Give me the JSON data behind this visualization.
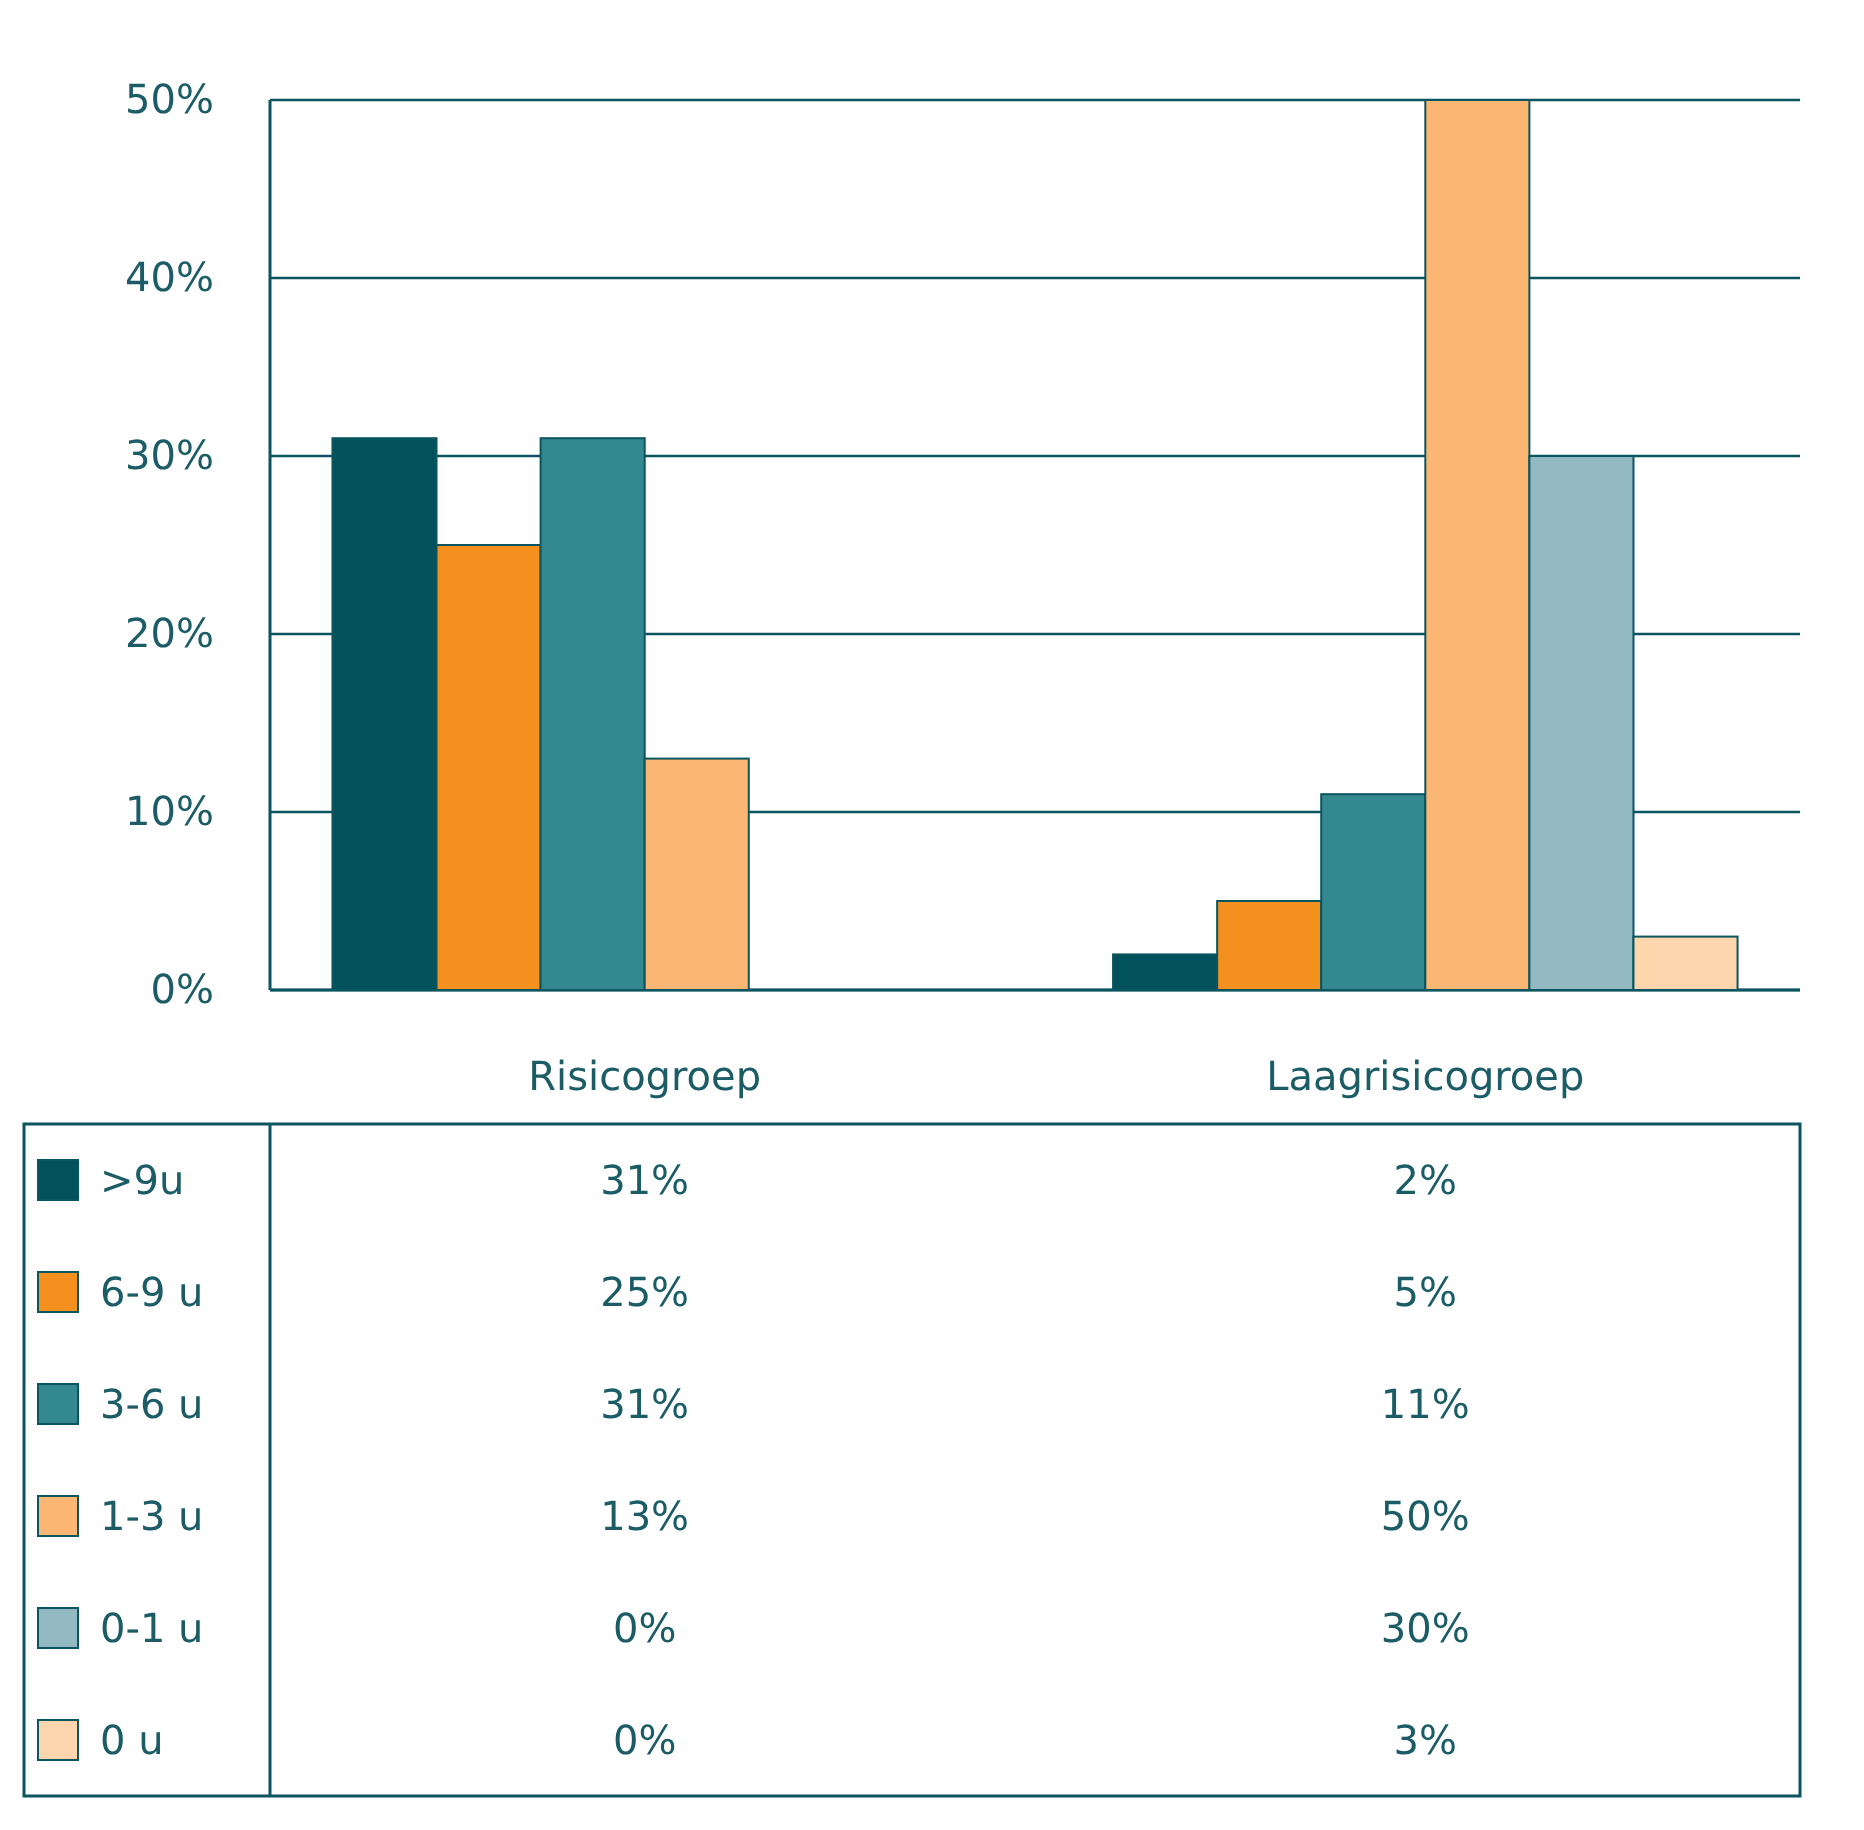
{
  "chart_data": {
    "type": "bar",
    "categories": [
      "Risicogroep",
      "Laagrisicogroep"
    ],
    "series": [
      {
        "name": ">9u",
        "color": "#02525c",
        "values": [
          31,
          2
        ],
        "value_labels": [
          "31%",
          "2%"
        ]
      },
      {
        "name": "6-9 u",
        "color": "#f4901e",
        "values": [
          25,
          5
        ],
        "value_labels": [
          "25%",
          "5%"
        ]
      },
      {
        "name": "3-6 u",
        "color": "#348890",
        "values": [
          31,
          11
        ],
        "value_labels": [
          "31%",
          "11%"
        ]
      },
      {
        "name": "1-3 u",
        "color": "#fbb673",
        "values": [
          13,
          50
        ],
        "value_labels": [
          "13%",
          "50%"
        ]
      },
      {
        "name": "0-1 u",
        "color": "#93bac2",
        "values": [
          0,
          30
        ],
        "value_labels": [
          "0%",
          "30%"
        ]
      },
      {
        "name": "0 u",
        "color": "#fdd6ad",
        "values": [
          0,
          3
        ],
        "value_labels": [
          "0%",
          "3%"
        ]
      }
    ],
    "ylim": [
      0,
      50
    ],
    "yticks": [
      {
        "value": 0,
        "label": "0%"
      },
      {
        "value": 10,
        "label": "10%"
      },
      {
        "value": 20,
        "label": "20%"
      },
      {
        "value": 30,
        "label": "30%"
      },
      {
        "value": 40,
        "label": "40%"
      },
      {
        "value": 50,
        "label": "50%"
      }
    ],
    "grid": "y",
    "legend": "bottom"
  }
}
